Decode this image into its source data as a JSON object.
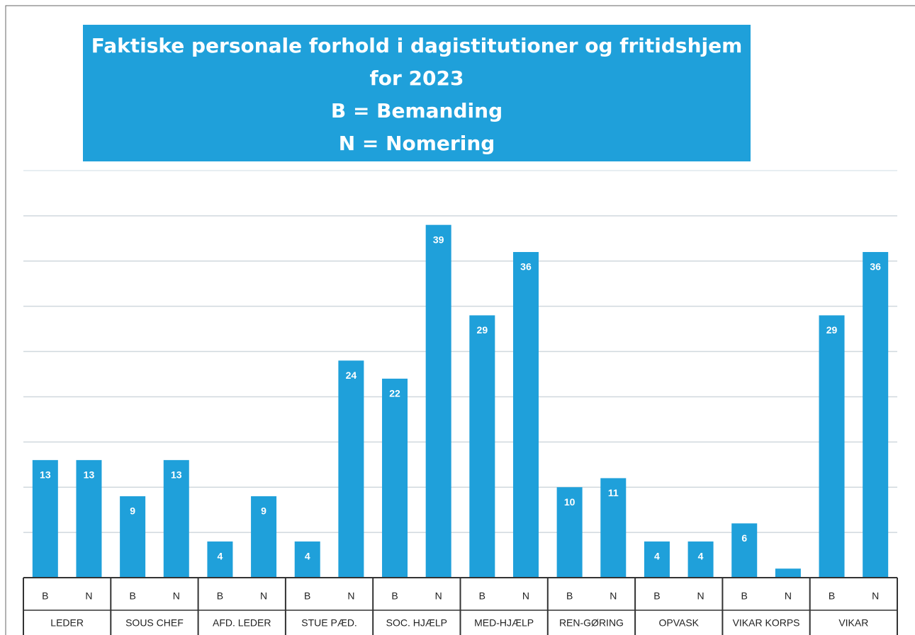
{
  "chart_data": {
    "type": "bar",
    "title": [
      "Faktiske personale forhold i dagistitutioner og fritidshjem",
      "for 2023",
      "B = Bemanding",
      "N = Nomering"
    ],
    "categories": [
      "LEDER",
      "SOUS CHEF",
      "AFD. LEDER",
      "STUE PÆD.",
      "SOC. HJÆLP",
      "MED-HJÆLP",
      "REN-GØRING",
      "OPVASK",
      "VIKAR KORPS",
      "VIKAR"
    ],
    "series": [
      {
        "name": "B",
        "color": "#1fa0da",
        "values": [
          13,
          9,
          4,
          4,
          22,
          29,
          10,
          4,
          6,
          29
        ]
      },
      {
        "name": "N",
        "color": "#1fa0da",
        "values": [
          13,
          13,
          9,
          24,
          39,
          36,
          11,
          4,
          1,
          36
        ],
        "value_labels": [
          13,
          13,
          9,
          24,
          39,
          36,
          11,
          4,
          null,
          36
        ]
      }
    ],
    "ylim": [
      0,
      45
    ],
    "yticks": [
      0,
      5,
      10,
      15,
      20,
      25,
      30,
      35,
      40,
      45
    ],
    "grid": true
  }
}
